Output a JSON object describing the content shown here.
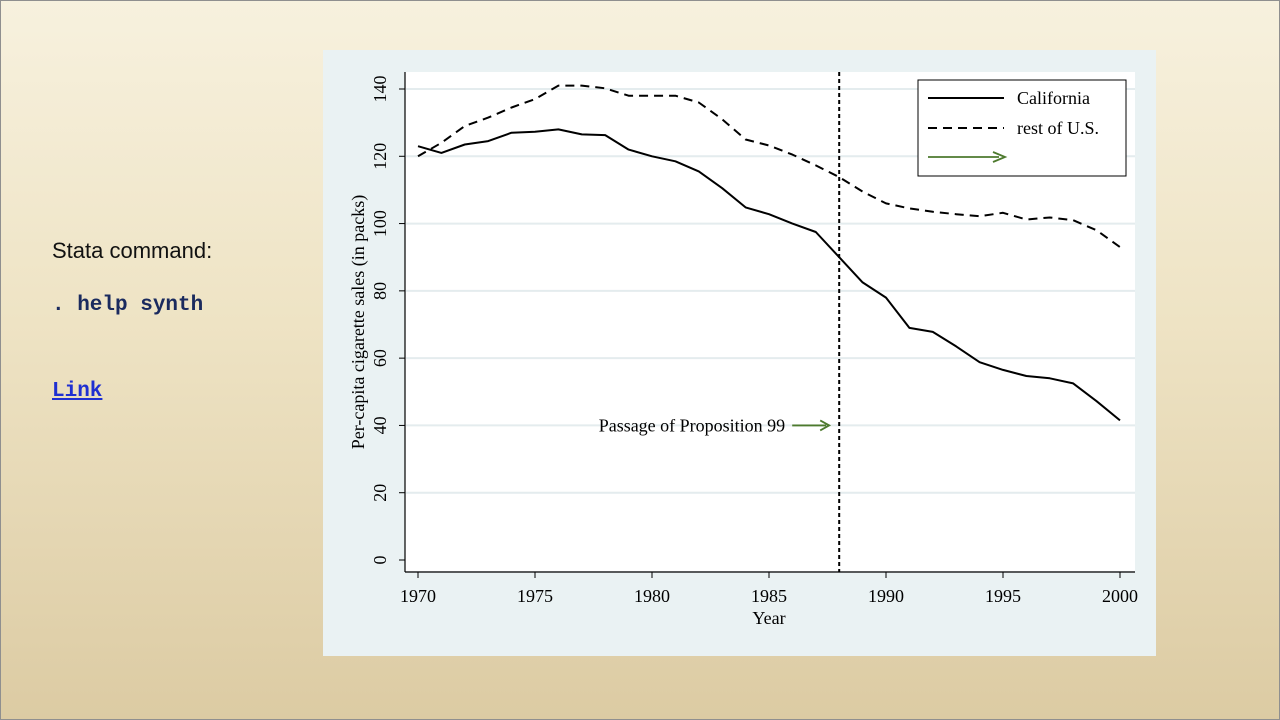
{
  "sidebar": {
    "stata_label": "Stata command:",
    "command": ". help synth",
    "link_text": "Link"
  },
  "colors": {
    "link": "#1f2fd1",
    "command": "#1a2a5e",
    "arrow": "#4d7a2e",
    "panel": "#eaf2f3"
  },
  "chart_data": {
    "type": "line",
    "title": "",
    "xlabel": "Year",
    "ylabel": "Per-capita cigarette sales (in packs)",
    "xlim": [
      1970,
      2000
    ],
    "ylim": [
      0,
      140
    ],
    "x_ticks": [
      1970,
      1975,
      1980,
      1985,
      1990,
      1995,
      2000
    ],
    "y_ticks": [
      0,
      20,
      40,
      60,
      80,
      100,
      120,
      140
    ],
    "grid": "horizontal",
    "x": [
      1970,
      1971,
      1972,
      1973,
      1974,
      1975,
      1976,
      1977,
      1978,
      1979,
      1980,
      1981,
      1982,
      1983,
      1984,
      1985,
      1986,
      1987,
      1988,
      1989,
      1990,
      1991,
      1992,
      1993,
      1994,
      1995,
      1996,
      1997,
      1998,
      1999,
      2000
    ],
    "series": [
      {
        "name": "California",
        "style": "solid",
        "values": [
          123,
          121,
          123.5,
          124.5,
          127,
          127.3,
          128,
          126.5,
          126.3,
          122,
          120,
          118.5,
          115.5,
          110.5,
          104.8,
          102.8,
          100,
          97.5,
          90,
          82.5,
          78,
          69,
          67.8,
          63.5,
          58.8,
          56.5,
          54.7,
          54,
          52.5,
          47.2,
          41.5
        ]
      },
      {
        "name": "rest of U.S.",
        "style": "dashed",
        "values": [
          120,
          124,
          129,
          131.5,
          134.5,
          137,
          141,
          141,
          140.2,
          138,
          138,
          138,
          136,
          131,
          125,
          123.2,
          120.5,
          117.3,
          113.8,
          109.5,
          106,
          104.5,
          103.5,
          102.8,
          102.2,
          103.2,
          101.2,
          101.8,
          101,
          98,
          93
        ]
      }
    ],
    "legend": {
      "placement": "top-right",
      "entries": [
        "California",
        "rest of U.S.",
        ""
      ]
    },
    "reference_line": {
      "x": 1988,
      "style": "dotted"
    },
    "annotation": {
      "text": "Passage of Proposition 99",
      "x": 1988,
      "y": 40
    }
  }
}
